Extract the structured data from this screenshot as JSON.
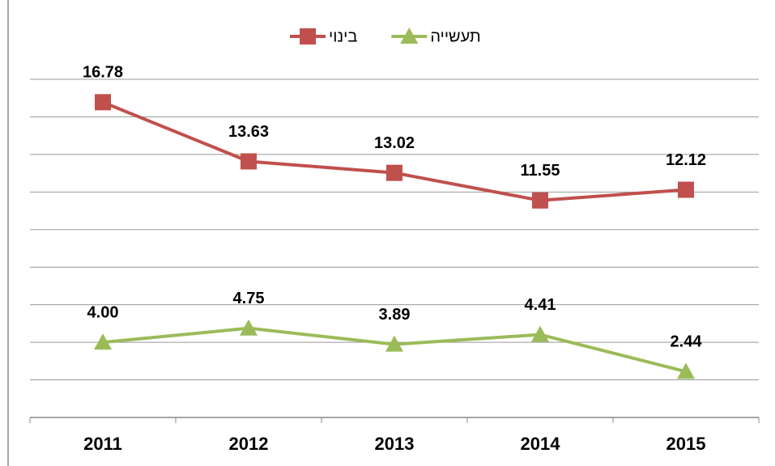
{
  "chart_data": {
    "type": "line",
    "categories": [
      "2011",
      "2012",
      "2013",
      "2014",
      "2015"
    ],
    "series": [
      {
        "name": "בינוי",
        "color": "#c0504d",
        "marker": "square",
        "values": [
          16.78,
          13.63,
          13.02,
          11.55,
          12.12
        ],
        "value_labels": [
          "16.78",
          "13.63",
          "13.02",
          "11.55",
          "12.12"
        ]
      },
      {
        "name": "תעשייה",
        "color": "#9bbb59",
        "marker": "triangle",
        "values": [
          4,
          4.75,
          3.89,
          4.41,
          2.44
        ],
        "value_labels": [
          "4.00",
          "4.75",
          "3.89",
          "4.41",
          "2.44"
        ]
      }
    ],
    "ylim": [
      0,
      18
    ],
    "yticks": [
      0,
      2,
      4,
      6,
      8,
      10,
      12,
      14,
      16,
      18
    ],
    "grid": true,
    "legend": "top"
  }
}
